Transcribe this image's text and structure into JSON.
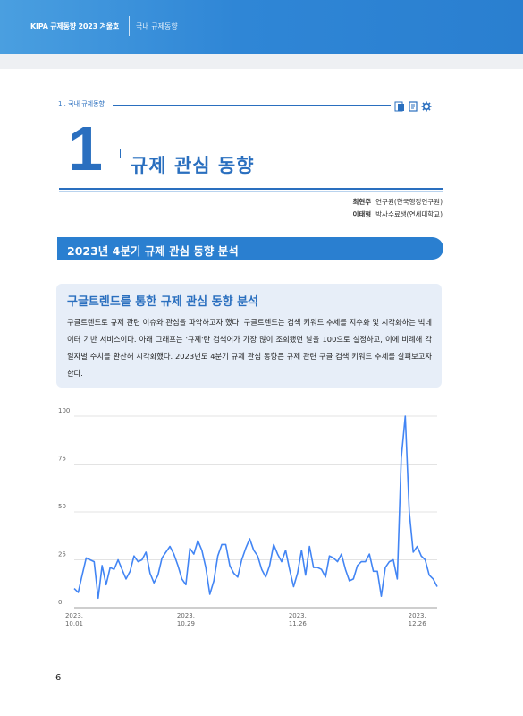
{
  "header": {
    "journal": "KIPA 규제동향 2023 겨울호",
    "section": "국내 규제동향"
  },
  "section_label": "1 . 국내 규제동향",
  "chapter_number": "1",
  "chapter_title": "규제 관심 동향",
  "authors": [
    {
      "name": "최현주",
      "role": "연구원(한국행정연구원)"
    },
    {
      "name": "이태형",
      "role": "박사수료생(연세대학교)"
    }
  ],
  "heading": "2023년 4분기 규제 관심 동향 분석",
  "infobox": {
    "title": "구글트렌드를 통한 규제 관심 동향 분석",
    "body": "구글트렌드로 규제 관련 이슈와 관심을 파악하고자 했다. 구글트렌드는 검색 키워드 추세를 지수화 및 시각화하는 빅데이터 기반 서비스이다. 아래 그래프는 '규제'란 검색어가 가장 많이 조회됐던 날을 100으로 설정하고, 이에 비례해 각 일자별 수치를 환산해 시각화했다. 2023년도 4분기 규제 관심 동향은 규제 관련 구글 검색 키워드 추세를 살펴보고자 한다."
  },
  "page_number": "6",
  "icons": [
    "document-icon",
    "page-icon",
    "gear-icon"
  ],
  "colors": {
    "accent": "#2a6fbf",
    "bar": "#2a7fd0",
    "line": "#4285f4"
  },
  "chart_data": {
    "type": "line",
    "xlabel": "",
    "ylabel": "",
    "ylim": [
      0,
      100
    ],
    "yticks": [
      0,
      25,
      50,
      75,
      100
    ],
    "xticks": [
      {
        "line1": "2023.",
        "line2": "10.01",
        "index": 0
      },
      {
        "line1": "2023.",
        "line2": "10.29",
        "index": 28
      },
      {
        "line1": "2023.",
        "line2": "11.26",
        "index": 56
      },
      {
        "line1": "2023.",
        "line2": "12.26",
        "index": 86
      }
    ],
    "series": [
      {
        "values": [
          10,
          8,
          17,
          26,
          25,
          24,
          5,
          22,
          12,
          21,
          20,
          25,
          20,
          15,
          19,
          27,
          24,
          25,
          29,
          18,
          13,
          17,
          26,
          29,
          32,
          28,
          22,
          15,
          12,
          31,
          28,
          35,
          30,
          21,
          7,
          14,
          27,
          33,
          33,
          22,
          18,
          16,
          25,
          31,
          36,
          30,
          27,
          20,
          16,
          22,
          33,
          28,
          24,
          30,
          20,
          11,
          18,
          30,
          17,
          32,
          21,
          21,
          20,
          16,
          27,
          26,
          24,
          28,
          20,
          14,
          15,
          22,
          24,
          24,
          28,
          19,
          19,
          6,
          21,
          24,
          25,
          15,
          78,
          100,
          50,
          29,
          32,
          27,
          25,
          17,
          15,
          11
        ]
      }
    ]
  }
}
